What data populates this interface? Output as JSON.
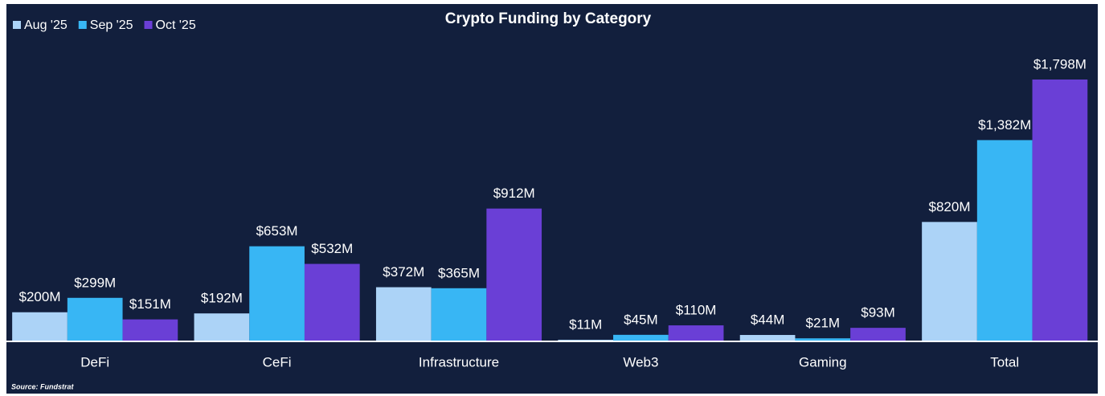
{
  "chart_data": {
    "type": "bar",
    "title": "Crypto Funding by Category",
    "source": "Source: Fundstrat",
    "categories": [
      "DeFi",
      "CeFi",
      "Infrastructure",
      "Web3",
      "Gaming",
      "Total"
    ],
    "series": [
      {
        "name": "Aug '25",
        "color": "#acd3f7",
        "values": [
          200,
          192,
          372,
          11,
          44,
          820
        ],
        "value_labels": [
          "$200M",
          "$192M",
          "$372M",
          "$11M",
          "$44M",
          "$820M"
        ]
      },
      {
        "name": "Sep '25",
        "color": "#38b6f4",
        "values": [
          299,
          653,
          365,
          45,
          21,
          1382
        ],
        "value_labels": [
          "$299M",
          "$653M",
          "$365M",
          "$45M",
          "$21M",
          "$1,382M"
        ]
      },
      {
        "name": "Oct '25",
        "color": "#6a3fd6",
        "values": [
          151,
          532,
          912,
          110,
          93,
          1798
        ],
        "value_labels": [
          "$151M",
          "$532M",
          "$912M",
          "$110M",
          "$93M",
          "$1,798M"
        ]
      }
    ],
    "legend": "top-left"
  }
}
